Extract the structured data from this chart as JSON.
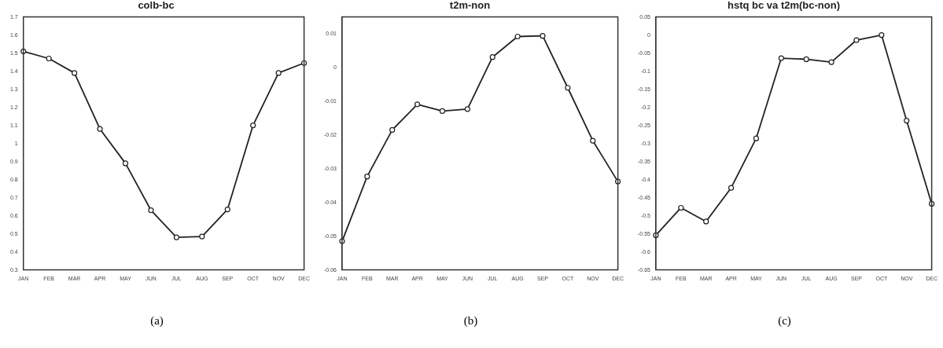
{
  "chart_data": [
    {
      "type": "line",
      "title": "colb-bc",
      "categories": [
        "JAN",
        "FEB",
        "MAR",
        "APR",
        "MAY",
        "JUN",
        "JUL",
        "AUG",
        "SEP",
        "OCT",
        "NOV",
        "DEC"
      ],
      "series": [
        {
          "color": "#222222",
          "values": [
            1.51,
            1.47,
            1.39,
            1.08,
            0.89,
            0.63,
            0.48,
            0.485,
            0.635,
            1.1,
            1.39,
            1.445
          ]
        }
      ],
      "ylim": [
        0.3,
        1.7
      ],
      "yticks": [
        0.3,
        0.4,
        0.5,
        0.6,
        0.7,
        0.8,
        0.9,
        1,
        1.1,
        1.2,
        1.3,
        1.4,
        1.5,
        1.6,
        1.7
      ],
      "grid": false,
      "legend": false,
      "marker": "circle",
      "line_style": "solid",
      "annotations": [
        "(a)"
      ]
    },
    {
      "type": "line",
      "title": "t2m-non",
      "categories": [
        "JAN",
        "FEB",
        "MAR",
        "APR",
        "MAY",
        "JUN",
        "JUL",
        "AUG",
        "SEP",
        "OCT",
        "NOV",
        "DEC"
      ],
      "series": [
        {
          "color": "#222222",
          "values": [
            -0.0515,
            -0.0323,
            -0.0185,
            -0.0109,
            -0.0129,
            -0.0123,
            0.0031,
            0.0092,
            0.0094,
            -0.006,
            -0.0217,
            -0.0338
          ]
        }
      ],
      "ylim": [
        -0.06,
        0.015
      ],
      "yticks": [
        -0.06,
        -0.05,
        -0.04,
        -0.03,
        -0.02,
        -0.01,
        0,
        0.01
      ],
      "grid": false,
      "legend": false,
      "marker": "circle",
      "line_style": "solid",
      "annotations": [
        "(b)"
      ]
    },
    {
      "type": "line",
      "title": "hstq bc va t2m(bc-non)",
      "categories": [
        "JAN",
        "FEB",
        "MAR",
        "APR",
        "MAY",
        "JUN",
        "JUL",
        "AUG",
        "SEP",
        "OCT",
        "NOV",
        "DEC"
      ],
      "series": [
        {
          "color": "#222222",
          "values": [
            -0.554,
            -0.478,
            -0.516,
            -0.423,
            -0.286,
            -0.064,
            -0.067,
            -0.075,
            -0.014,
            0,
            -0.237,
            -0.467
          ]
        }
      ],
      "ylim": [
        -0.65,
        0.05
      ],
      "yticks": [
        -0.65,
        -0.6,
        -0.55,
        -0.5,
        -0.45,
        -0.4,
        -0.35,
        -0.3,
        -0.25,
        -0.2,
        -0.15,
        -0.1,
        -0.05,
        0,
        0.05
      ],
      "grid": false,
      "legend": false,
      "marker": "circle",
      "line_style": "solid",
      "annotations": [
        "(c)"
      ]
    }
  ]
}
